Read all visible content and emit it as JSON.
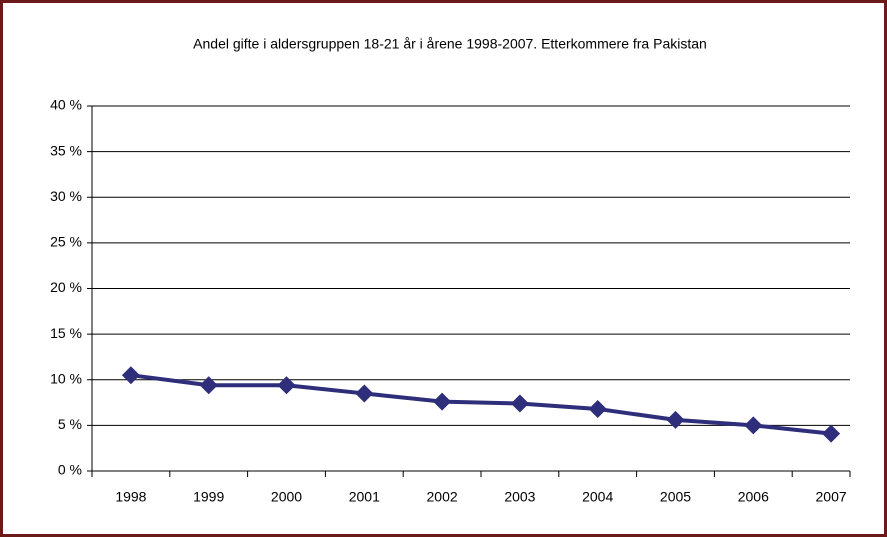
{
  "chart_data": {
    "type": "line",
    "title": "Andel gifte i aldersgruppen 18-21 år i årene 1998-2007. Etterkommere fra Pakistan",
    "categories": [
      "1998",
      "1999",
      "2000",
      "2001",
      "2002",
      "2003",
      "2004",
      "2005",
      "2006",
      "2007"
    ],
    "values": [
      10.5,
      9.4,
      9.4,
      8.5,
      7.6,
      7.4,
      6.8,
      5.6,
      5.0,
      4.1
    ],
    "color": "#2e2e7a",
    "ylim": [
      0,
      40
    ],
    "yticks": [
      {
        "value": 0,
        "label": "0 %"
      },
      {
        "value": 5,
        "label": "5 %"
      },
      {
        "value": 10,
        "label": "10 %"
      },
      {
        "value": 15,
        "label": "15 %"
      },
      {
        "value": 20,
        "label": "20 %"
      },
      {
        "value": 25,
        "label": "25 %"
      },
      {
        "value": 30,
        "label": "30 %"
      },
      {
        "value": 35,
        "label": "35 %"
      },
      {
        "value": 40,
        "label": "40 %"
      }
    ],
    "grid": true
  }
}
